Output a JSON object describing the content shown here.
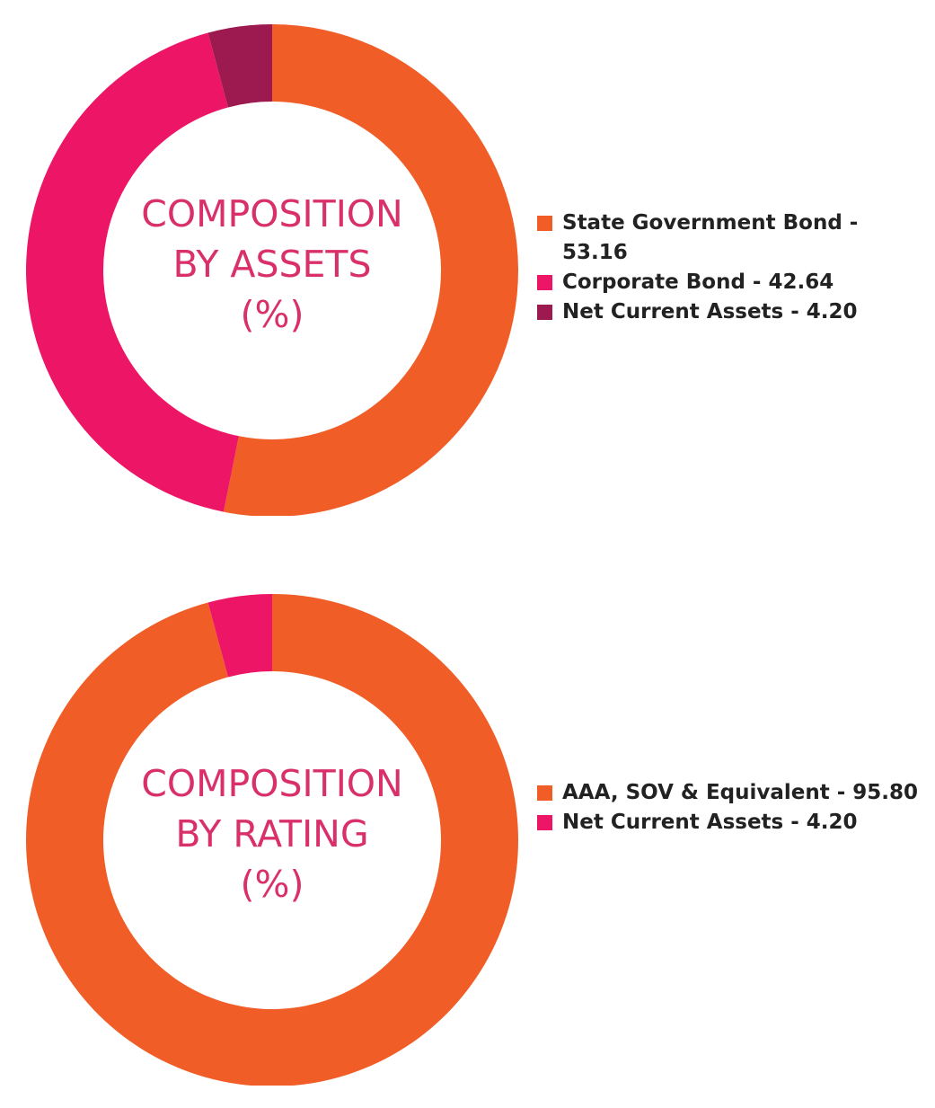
{
  "chart_data": [
    {
      "type": "pie",
      "center_title": [
        "COMPOSITION",
        "BY ASSETS",
        "(%)"
      ],
      "legend_position": "right",
      "slices": [
        {
          "label": "State Government Bond - 53.16",
          "value": 53.16,
          "color": "#f15d27"
        },
        {
          "label": "Corporate Bond - 42.64",
          "value": 42.64,
          "color": "#ed1566"
        },
        {
          "label": "Net Current Assets - 4.20",
          "value": 4.2,
          "color": "#9c1a4f"
        }
      ]
    },
    {
      "type": "pie",
      "center_title": [
        "COMPOSITION",
        "BY RATING",
        "(%)"
      ],
      "legend_position": "right",
      "slices": [
        {
          "label": "AAA, SOV & Equivalent - 95.80",
          "value": 95.8,
          "color": "#f15d27"
        },
        {
          "label": "Net Current Assets - 4.20",
          "value": 4.2,
          "color": "#ed1566"
        }
      ]
    }
  ],
  "colors": {
    "title": "#d9306b",
    "legend_text": "#222222",
    "background": "#ffffff"
  }
}
